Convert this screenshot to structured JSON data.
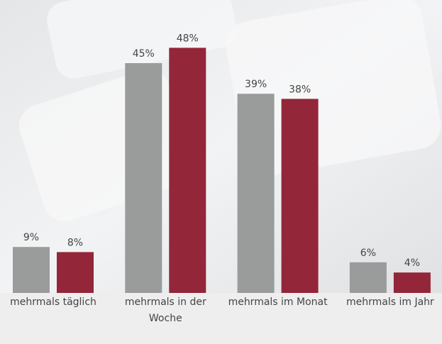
{
  "chart_data": {
    "type": "bar",
    "categories": [
      "mehrmals täglich",
      "mehrmals in der Woche",
      "mehrmals im Monat",
      "mehrmals im Jahr"
    ],
    "series": [
      {
        "color": "#9a9b9b",
        "values": [
          9,
          45,
          39,
          6
        ],
        "value_labels": [
          "9%",
          "45%",
          "39%",
          "6%"
        ]
      },
      {
        "color": "#932638",
        "values": [
          8,
          48,
          38,
          4
        ],
        "value_labels": [
          "8%",
          "48%",
          "38%",
          "4%"
        ]
      }
    ]
  }
}
